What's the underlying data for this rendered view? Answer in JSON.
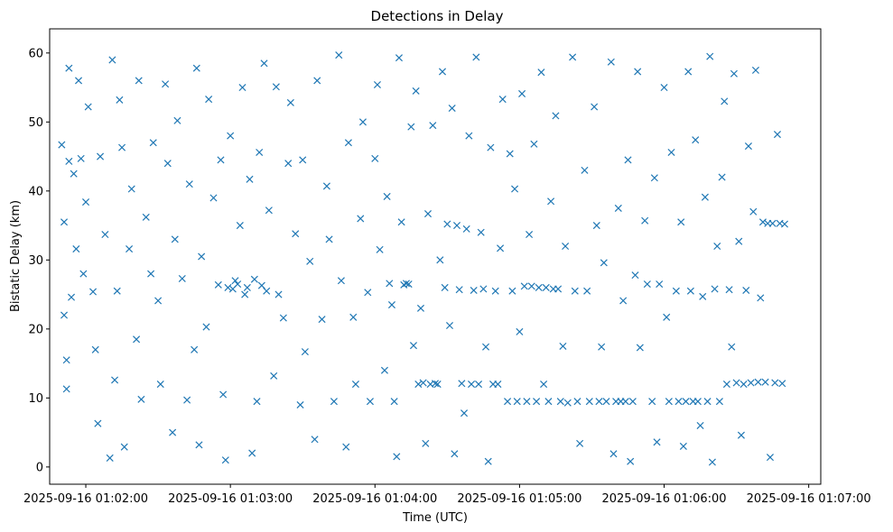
{
  "chart_data": {
    "type": "scatter",
    "title": "Detections in Delay",
    "xlabel": "Time (UTC)",
    "ylabel": "Bistatic Delay (km)",
    "x_ticks": [
      "2025-09-16 01:02:00",
      "2025-09-16 01:03:00",
      "2025-09-16 01:04:00",
      "2025-09-16 01:05:00",
      "2025-09-16 01:06:00",
      "2025-09-16 01:07:00"
    ],
    "y_ticks": [
      0,
      10,
      20,
      30,
      40,
      50,
      60
    ],
    "xlim": [
      "2025-09-16 01:01:45",
      "2025-09-16 01:07:05"
    ],
    "ylim": [
      -2.5,
      63.5
    ],
    "grid": false,
    "marker": "x",
    "color": "#1f77b4",
    "x_start": "2025-09-16 01:01:50",
    "x_end": "2025-09-16 01:06:50",
    "points": [
      [
        "01:01:50",
        46.7
      ],
      [
        "01:01:51",
        35.5
      ],
      [
        "01:01:51",
        22.0
      ],
      [
        "01:01:52",
        15.5
      ],
      [
        "01:01:52",
        11.3
      ],
      [
        "01:01:53",
        57.8
      ],
      [
        "01:01:53",
        44.3
      ],
      [
        "01:01:54",
        24.6
      ],
      [
        "01:01:55",
        42.5
      ],
      [
        "01:01:56",
        31.6
      ],
      [
        "01:01:57",
        56.0
      ],
      [
        "01:01:58",
        44.7
      ],
      [
        "01:01:59",
        28.0
      ],
      [
        "01:02:00",
        38.4
      ],
      [
        "01:02:01",
        52.2
      ],
      [
        "01:02:03",
        25.4
      ],
      [
        "01:02:04",
        17.0
      ],
      [
        "01:02:05",
        6.3
      ],
      [
        "01:02:06",
        45.0
      ],
      [
        "01:02:08",
        33.7
      ],
      [
        "01:02:10",
        1.3
      ],
      [
        "01:02:11",
        59.0
      ],
      [
        "01:02:12",
        12.6
      ],
      [
        "01:02:13",
        25.5
      ],
      [
        "01:02:14",
        53.2
      ],
      [
        "01:02:15",
        46.3
      ],
      [
        "01:02:16",
        2.9
      ],
      [
        "01:02:18",
        31.6
      ],
      [
        "01:02:19",
        40.3
      ],
      [
        "01:02:21",
        18.5
      ],
      [
        "01:02:22",
        56.0
      ],
      [
        "01:02:23",
        9.8
      ],
      [
        "01:02:25",
        36.2
      ],
      [
        "01:02:27",
        28.0
      ],
      [
        "01:02:28",
        47.0
      ],
      [
        "01:02:30",
        24.1
      ],
      [
        "01:02:31",
        12.0
      ],
      [
        "01:02:33",
        55.5
      ],
      [
        "01:02:34",
        44.0
      ],
      [
        "01:02:36",
        5.0
      ],
      [
        "01:02:37",
        33.0
      ],
      [
        "01:02:38",
        50.2
      ],
      [
        "01:02:40",
        27.3
      ],
      [
        "01:02:42",
        9.7
      ],
      [
        "01:02:43",
        41.0
      ],
      [
        "01:02:45",
        17.0
      ],
      [
        "01:02:46",
        57.8
      ],
      [
        "01:02:47",
        3.2
      ],
      [
        "01:02:48",
        30.5
      ],
      [
        "01:02:50",
        20.3
      ],
      [
        "01:02:51",
        53.3
      ],
      [
        "01:02:53",
        39.0
      ],
      [
        "01:02:55",
        26.4
      ],
      [
        "01:02:56",
        44.5
      ],
      [
        "01:02:57",
        10.5
      ],
      [
        "01:02:58",
        1.0
      ],
      [
        "01:02:59",
        26.0
      ],
      [
        "01:03:00",
        48.0
      ],
      [
        "01:03:01",
        25.8
      ],
      [
        "01:03:02",
        27.0
      ],
      [
        "01:03:03",
        26.5
      ],
      [
        "01:03:04",
        35.0
      ],
      [
        "01:03:05",
        55.0
      ],
      [
        "01:03:06",
        25.0
      ],
      [
        "01:03:07",
        26.0
      ],
      [
        "01:03:08",
        41.7
      ],
      [
        "01:03:09",
        2.0
      ],
      [
        "01:03:10",
        27.2
      ],
      [
        "01:03:11",
        9.5
      ],
      [
        "01:03:12",
        45.6
      ],
      [
        "01:03:13",
        26.3
      ],
      [
        "01:03:14",
        58.5
      ],
      [
        "01:03:15",
        25.5
      ],
      [
        "01:03:16",
        37.2
      ],
      [
        "01:03:18",
        13.2
      ],
      [
        "01:03:19",
        55.1
      ],
      [
        "01:03:20",
        25.0
      ],
      [
        "01:03:22",
        21.6
      ],
      [
        "01:03:24",
        44.0
      ],
      [
        "01:03:25",
        52.8
      ],
      [
        "01:03:27",
        33.8
      ],
      [
        "01:03:29",
        9.0
      ],
      [
        "01:03:30",
        44.5
      ],
      [
        "01:03:31",
        16.7
      ],
      [
        "01:03:33",
        29.8
      ],
      [
        "01:03:35",
        4.0
      ],
      [
        "01:03:36",
        56.0
      ],
      [
        "01:03:38",
        21.4
      ],
      [
        "01:03:40",
        40.7
      ],
      [
        "01:03:41",
        33.0
      ],
      [
        "01:03:43",
        9.5
      ],
      [
        "01:03:45",
        59.7
      ],
      [
        "01:03:46",
        27.0
      ],
      [
        "01:03:48",
        2.9
      ],
      [
        "01:03:49",
        47.0
      ],
      [
        "01:03:51",
        21.7
      ],
      [
        "01:03:52",
        12.0
      ],
      [
        "01:03:54",
        36.0
      ],
      [
        "01:03:55",
        50.0
      ],
      [
        "01:03:57",
        25.3
      ],
      [
        "01:03:58",
        9.5
      ],
      [
        "01:04:00",
        44.7
      ],
      [
        "01:04:01",
        55.4
      ],
      [
        "01:04:02",
        31.5
      ],
      [
        "01:04:04",
        14.0
      ],
      [
        "01:04:05",
        39.2
      ],
      [
        "01:04:06",
        26.6
      ],
      [
        "01:04:07",
        23.5
      ],
      [
        "01:04:08",
        9.5
      ],
      [
        "01:04:09",
        1.5
      ],
      [
        "01:04:10",
        59.3
      ],
      [
        "01:04:11",
        35.5
      ],
      [
        "01:04:12",
        26.4
      ],
      [
        "01:04:13",
        26.6
      ],
      [
        "01:04:14",
        26.5
      ],
      [
        "01:04:15",
        49.3
      ],
      [
        "01:04:16",
        17.6
      ],
      [
        "01:04:17",
        54.5
      ],
      [
        "01:04:18",
        12.0
      ],
      [
        "01:04:19",
        23.0
      ],
      [
        "01:04:20",
        12.2
      ],
      [
        "01:04:21",
        3.4
      ],
      [
        "01:04:22",
        36.7
      ],
      [
        "01:04:23",
        12.0
      ],
      [
        "01:04:24",
        49.5
      ],
      [
        "01:04:25",
        12.1
      ],
      [
        "01:04:26",
        12.0
      ],
      [
        "01:04:27",
        30.0
      ],
      [
        "01:04:28",
        57.3
      ],
      [
        "01:04:29",
        26.0
      ],
      [
        "01:04:30",
        35.2
      ],
      [
        "01:04:31",
        20.5
      ],
      [
        "01:04:32",
        52.0
      ],
      [
        "01:04:33",
        1.9
      ],
      [
        "01:04:34",
        35.0
      ],
      [
        "01:04:35",
        25.7
      ],
      [
        "01:04:36",
        12.1
      ],
      [
        "01:04:37",
        7.8
      ],
      [
        "01:04:38",
        34.5
      ],
      [
        "01:04:39",
        48.0
      ],
      [
        "01:04:40",
        12.0
      ],
      [
        "01:04:41",
        25.6
      ],
      [
        "01:04:42",
        59.4
      ],
      [
        "01:04:43",
        12.0
      ],
      [
        "01:04:44",
        34.0
      ],
      [
        "01:04:45",
        25.8
      ],
      [
        "01:04:46",
        17.4
      ],
      [
        "01:04:47",
        0.8
      ],
      [
        "01:04:48",
        46.3
      ],
      [
        "01:04:49",
        12.0
      ],
      [
        "01:04:50",
        25.5
      ],
      [
        "01:04:51",
        12.0
      ],
      [
        "01:04:52",
        31.7
      ],
      [
        "01:04:53",
        53.3
      ],
      [
        "01:04:55",
        9.5
      ],
      [
        "01:04:56",
        45.4
      ],
      [
        "01:04:57",
        25.5
      ],
      [
        "01:04:58",
        40.3
      ],
      [
        "01:04:59",
        9.5
      ],
      [
        "01:05:00",
        19.6
      ],
      [
        "01:05:01",
        54.1
      ],
      [
        "01:05:02",
        26.2
      ],
      [
        "01:05:03",
        9.5
      ],
      [
        "01:05:04",
        33.7
      ],
      [
        "01:05:05",
        26.2
      ],
      [
        "01:05:06",
        46.8
      ],
      [
        "01:05:07",
        9.5
      ],
      [
        "01:05:08",
        26.0
      ],
      [
        "01:05:09",
        57.2
      ],
      [
        "01:05:10",
        12.0
      ],
      [
        "01:05:11",
        26.0
      ],
      [
        "01:05:12",
        9.5
      ],
      [
        "01:05:13",
        38.5
      ],
      [
        "01:05:14",
        25.8
      ],
      [
        "01:05:15",
        50.9
      ],
      [
        "01:05:16",
        25.8
      ],
      [
        "01:05:17",
        9.5
      ],
      [
        "01:05:18",
        17.5
      ],
      [
        "01:05:19",
        32.0
      ],
      [
        "01:05:20",
        9.3
      ],
      [
        "01:05:22",
        59.4
      ],
      [
        "01:05:23",
        25.5
      ],
      [
        "01:05:24",
        9.5
      ],
      [
        "01:05:25",
        3.4
      ],
      [
        "01:05:27",
        43.0
      ],
      [
        "01:05:28",
        25.5
      ],
      [
        "01:05:29",
        9.5
      ],
      [
        "01:05:31",
        52.2
      ],
      [
        "01:05:32",
        35.0
      ],
      [
        "01:05:33",
        9.5
      ],
      [
        "01:05:34",
        17.4
      ],
      [
        "01:05:35",
        29.6
      ],
      [
        "01:05:36",
        9.5
      ],
      [
        "01:05:38",
        58.7
      ],
      [
        "01:05:39",
        1.9
      ],
      [
        "01:05:40",
        9.5
      ],
      [
        "01:05:41",
        37.5
      ],
      [
        "01:05:42",
        9.5
      ],
      [
        "01:05:43",
        24.1
      ],
      [
        "01:05:44",
        9.5
      ],
      [
        "01:05:45",
        44.5
      ],
      [
        "01:05:46",
        0.8
      ],
      [
        "01:05:47",
        9.5
      ],
      [
        "01:05:48",
        27.8
      ],
      [
        "01:05:49",
        57.3
      ],
      [
        "01:05:50",
        17.3
      ],
      [
        "01:05:52",
        35.7
      ],
      [
        "01:05:53",
        26.5
      ],
      [
        "01:05:55",
        9.5
      ],
      [
        "01:05:56",
        41.9
      ],
      [
        "01:05:57",
        3.6
      ],
      [
        "01:05:58",
        26.5
      ],
      [
        "01:06:00",
        55.0
      ],
      [
        "01:06:01",
        21.7
      ],
      [
        "01:06:02",
        9.5
      ],
      [
        "01:06:03",
        45.6
      ],
      [
        "01:06:05",
        25.5
      ],
      [
        "01:06:06",
        9.5
      ],
      [
        "01:06:07",
        35.5
      ],
      [
        "01:06:08",
        3.0
      ],
      [
        "01:06:09",
        9.5
      ],
      [
        "01:06:10",
        57.3
      ],
      [
        "01:06:11",
        25.5
      ],
      [
        "01:06:12",
        9.5
      ],
      [
        "01:06:13",
        47.4
      ],
      [
        "01:06:14",
        9.5
      ],
      [
        "01:06:15",
        6.0
      ],
      [
        "01:06:16",
        24.7
      ],
      [
        "01:06:17",
        39.1
      ],
      [
        "01:06:18",
        9.5
      ],
      [
        "01:06:19",
        59.5
      ],
      [
        "01:06:20",
        0.7
      ],
      [
        "01:06:21",
        25.8
      ],
      [
        "01:06:22",
        32.0
      ],
      [
        "01:06:23",
        9.5
      ],
      [
        "01:06:24",
        42.0
      ],
      [
        "01:06:25",
        53.0
      ],
      [
        "01:06:26",
        12.0
      ],
      [
        "01:06:27",
        25.7
      ],
      [
        "01:06:28",
        17.4
      ],
      [
        "01:06:29",
        57.0
      ],
      [
        "01:06:30",
        12.2
      ],
      [
        "01:06:31",
        32.7
      ],
      [
        "01:06:32",
        4.6
      ],
      [
        "01:06:33",
        12.0
      ],
      [
        "01:06:34",
        25.6
      ],
      [
        "01:06:35",
        46.5
      ],
      [
        "01:06:36",
        12.2
      ],
      [
        "01:06:37",
        37.0
      ],
      [
        "01:06:38",
        57.5
      ],
      [
        "01:06:39",
        12.3
      ],
      [
        "01:06:40",
        24.5
      ],
      [
        "01:06:41",
        35.5
      ],
      [
        "01:06:42",
        12.3
      ],
      [
        "01:06:43",
        35.3
      ],
      [
        "01:06:44",
        1.4
      ],
      [
        "01:06:45",
        35.3
      ],
      [
        "01:06:46",
        12.2
      ],
      [
        "01:06:47",
        48.2
      ],
      [
        "01:06:48",
        35.3
      ],
      [
        "01:06:49",
        12.1
      ],
      [
        "01:06:50",
        35.2
      ]
    ]
  }
}
